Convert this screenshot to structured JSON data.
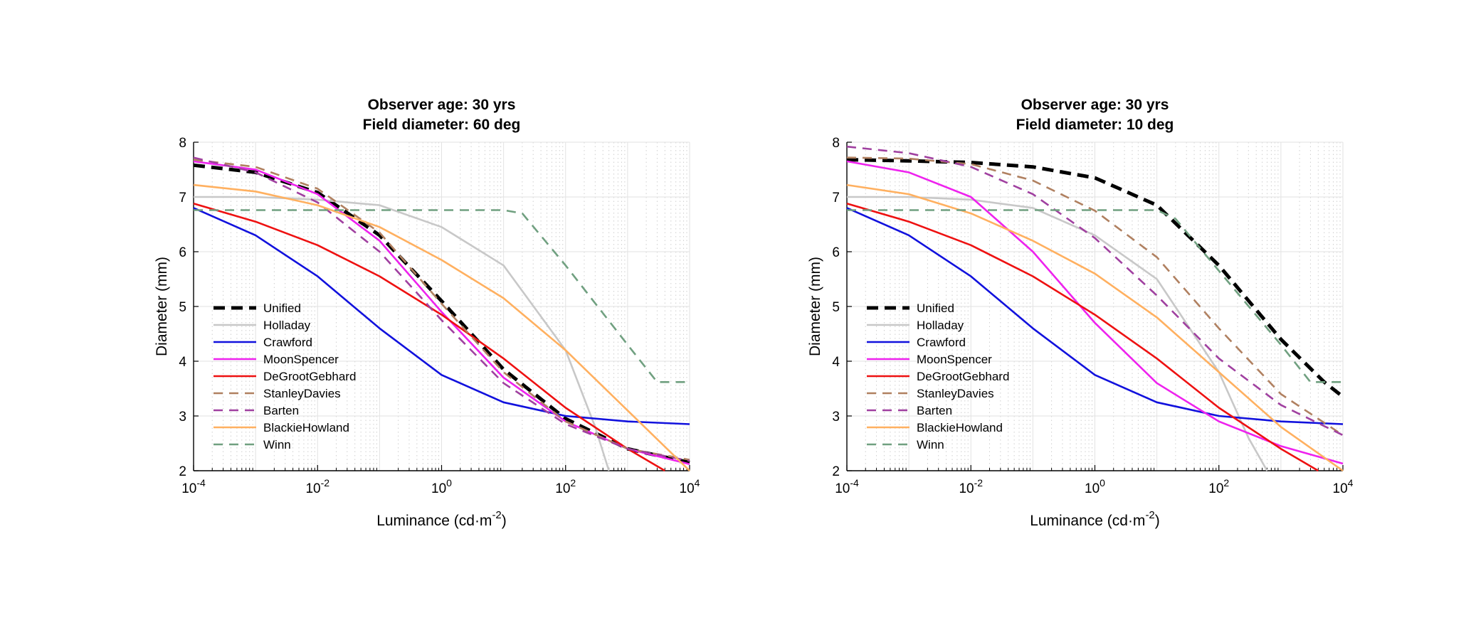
{
  "chart_data": [
    {
      "type": "line",
      "title": [
        "Observer age: 30 yrs",
        "Field diameter: 60 deg"
      ],
      "xlabel": "Luminance (cd·m⁻²)",
      "ylabel": "Diameter (mm)",
      "xscale": "log",
      "xlim": [
        0.0001,
        10000
      ],
      "ylim": [
        2,
        8
      ],
      "xticks": [
        "10-4",
        "10-2",
        "100",
        "102",
        "104"
      ],
      "yticks": [
        2,
        3,
        4,
        5,
        6,
        7,
        8
      ],
      "grid": true,
      "legend_position": "lower-left",
      "series": [
        {
          "name": "Unified",
          "style": "dashed-thick",
          "color": "#000000",
          "points": [
            [
              0.0001,
              7.58
            ],
            [
              0.001,
              7.45
            ],
            [
              0.01,
              7.08
            ],
            [
              0.1,
              6.3
            ],
            [
              1,
              5.1
            ],
            [
              10,
              3.85
            ],
            [
              100,
              2.95
            ],
            [
              1000,
              2.4
            ],
            [
              10000,
              2.15
            ]
          ]
        },
        {
          "name": "Holladay",
          "style": "solid",
          "color": "#c8c8c8",
          "points": [
            [
              0.0001,
              7.0
            ],
            [
              0.001,
              7.0
            ],
            [
              0.01,
              6.95
            ],
            [
              0.1,
              6.85
            ],
            [
              1,
              6.45
            ],
            [
              10,
              5.75
            ],
            [
              100,
              4.2
            ],
            [
              300,
              2.8
            ],
            [
              500,
              2.0
            ]
          ]
        },
        {
          "name": "Crawford",
          "style": "solid",
          "color": "#1111dd",
          "points": [
            [
              0.0001,
              6.8
            ],
            [
              0.001,
              6.3
            ],
            [
              0.01,
              5.55
            ],
            [
              0.1,
              4.6
            ],
            [
              1,
              3.75
            ],
            [
              10,
              3.25
            ],
            [
              100,
              3.0
            ],
            [
              1000,
              2.9
            ],
            [
              10000,
              2.85
            ]
          ]
        },
        {
          "name": "MoonSpencer",
          "style": "solid",
          "color": "#ee22ee",
          "points": [
            [
              0.0001,
              7.65
            ],
            [
              0.001,
              7.5
            ],
            [
              0.01,
              7.05
            ],
            [
              0.1,
              6.2
            ],
            [
              1,
              4.9
            ],
            [
              10,
              3.7
            ],
            [
              100,
              2.9
            ],
            [
              1000,
              2.4
            ],
            [
              10000,
              2.12
            ]
          ]
        },
        {
          "name": "DeGrootGebhard",
          "style": "solid",
          "color": "#ee1111",
          "points": [
            [
              0.0001,
              6.88
            ],
            [
              0.001,
              6.55
            ],
            [
              0.01,
              6.12
            ],
            [
              0.1,
              5.55
            ],
            [
              1,
              4.85
            ],
            [
              10,
              4.05
            ],
            [
              100,
              3.15
            ],
            [
              1000,
              2.4
            ],
            [
              4000,
              2.0
            ]
          ]
        },
        {
          "name": "StanleyDavies",
          "style": "dashed",
          "color": "#b08060",
          "points": [
            [
              0.0001,
              7.68
            ],
            [
              0.001,
              7.55
            ],
            [
              0.01,
              7.15
            ],
            [
              0.1,
              6.35
            ],
            [
              1,
              5.05
            ],
            [
              10,
              3.8
            ],
            [
              100,
              2.9
            ],
            [
              1000,
              2.4
            ],
            [
              10000,
              2.2
            ]
          ]
        },
        {
          "name": "Barten",
          "style": "dashed",
          "color": "#a040a0",
          "points": [
            [
              0.0001,
              7.72
            ],
            [
              0.001,
              7.45
            ],
            [
              0.01,
              6.9
            ],
            [
              0.1,
              6.0
            ],
            [
              1,
              4.75
            ],
            [
              10,
              3.6
            ],
            [
              100,
              2.85
            ],
            [
              1000,
              2.4
            ],
            [
              10000,
              2.18
            ]
          ]
        },
        {
          "name": "BlackieHowland",
          "style": "solid",
          "color": "#ffb060",
          "points": [
            [
              0.0001,
              7.22
            ],
            [
              0.001,
              7.1
            ],
            [
              0.01,
              6.85
            ],
            [
              0.1,
              6.45
            ],
            [
              1,
              5.85
            ],
            [
              10,
              5.15
            ],
            [
              100,
              4.2
            ],
            [
              1000,
              3.1
            ],
            [
              10000,
              2.0
            ]
          ]
        },
        {
          "name": "Winn",
          "style": "dashed",
          "color": "#70a080",
          "points": [
            [
              0.0001,
              6.76
            ],
            [
              0.001,
              6.76
            ],
            [
              0.01,
              6.76
            ],
            [
              0.1,
              6.76
            ],
            [
              1,
              6.76
            ],
            [
              10,
              6.76
            ],
            [
              20,
              6.7
            ],
            [
              100,
              5.75
            ],
            [
              1000,
              4.3
            ],
            [
              3000,
              3.62
            ],
            [
              10000,
              3.62
            ]
          ]
        }
      ]
    },
    {
      "type": "line",
      "title": [
        "Observer age: 30 yrs",
        "Field diameter: 10 deg"
      ],
      "xlabel": "Luminance (cd·m⁻²)",
      "ylabel": "Diameter (mm)",
      "xscale": "log",
      "xlim": [
        0.0001,
        10000
      ],
      "ylim": [
        2,
        8
      ],
      "xticks": [
        "10-4",
        "10-2",
        "100",
        "102",
        "104"
      ],
      "yticks": [
        2,
        3,
        4,
        5,
        6,
        7,
        8
      ],
      "grid": true,
      "legend_position": "lower-left",
      "series": [
        {
          "name": "Unified",
          "style": "dashed-thick",
          "color": "#000000",
          "points": [
            [
              0.0001,
              7.68
            ],
            [
              0.001,
              7.66
            ],
            [
              0.01,
              7.63
            ],
            [
              0.1,
              7.55
            ],
            [
              1,
              7.35
            ],
            [
              10,
              6.85
            ],
            [
              100,
              5.75
            ],
            [
              1000,
              4.4
            ],
            [
              5000,
              3.62
            ],
            [
              10000,
              3.35
            ]
          ]
        },
        {
          "name": "Holladay",
          "style": "solid",
          "color": "#c8c8c8",
          "points": [
            [
              0.0001,
              7.0
            ],
            [
              0.001,
              7.0
            ],
            [
              0.01,
              6.95
            ],
            [
              0.1,
              6.8
            ],
            [
              1,
              6.3
            ],
            [
              10,
              5.5
            ],
            [
              100,
              3.8
            ],
            [
              300,
              2.6
            ],
            [
              600,
              2.0
            ]
          ]
        },
        {
          "name": "Crawford",
          "style": "solid",
          "color": "#1111dd",
          "points": [
            [
              0.0001,
              6.8
            ],
            [
              0.001,
              6.3
            ],
            [
              0.01,
              5.55
            ],
            [
              0.1,
              4.6
            ],
            [
              1,
              3.75
            ],
            [
              10,
              3.25
            ],
            [
              100,
              3.0
            ],
            [
              1000,
              2.9
            ],
            [
              10000,
              2.85
            ]
          ]
        },
        {
          "name": "MoonSpencer",
          "style": "solid",
          "color": "#ee22ee",
          "points": [
            [
              0.0001,
              7.65
            ],
            [
              0.001,
              7.45
            ],
            [
              0.01,
              7.0
            ],
            [
              0.1,
              6.0
            ],
            [
              1,
              4.7
            ],
            [
              10,
              3.6
            ],
            [
              100,
              2.9
            ],
            [
              1000,
              2.45
            ],
            [
              10000,
              2.13
            ]
          ]
        },
        {
          "name": "DeGrootGebhard",
          "style": "solid",
          "color": "#ee1111",
          "points": [
            [
              0.0001,
              6.88
            ],
            [
              0.001,
              6.55
            ],
            [
              0.01,
              6.12
            ],
            [
              0.1,
              5.55
            ],
            [
              1,
              4.85
            ],
            [
              10,
              4.05
            ],
            [
              100,
              3.15
            ],
            [
              1000,
              2.4
            ],
            [
              4000,
              2.0
            ]
          ]
        },
        {
          "name": "StanleyDavies",
          "style": "dashed",
          "color": "#b08060",
          "points": [
            [
              0.0001,
              7.72
            ],
            [
              0.001,
              7.7
            ],
            [
              0.01,
              7.6
            ],
            [
              0.1,
              7.3
            ],
            [
              1,
              6.75
            ],
            [
              10,
              5.9
            ],
            [
              100,
              4.6
            ],
            [
              1000,
              3.4
            ],
            [
              10000,
              2.65
            ]
          ]
        },
        {
          "name": "Barten",
          "style": "dashed",
          "color": "#a040a0",
          "points": [
            [
              0.0001,
              7.92
            ],
            [
              0.001,
              7.8
            ],
            [
              0.01,
              7.55
            ],
            [
              0.1,
              7.05
            ],
            [
              1,
              6.25
            ],
            [
              10,
              5.2
            ],
            [
              100,
              4.05
            ],
            [
              1000,
              3.2
            ],
            [
              10000,
              2.65
            ]
          ]
        },
        {
          "name": "BlackieHowland",
          "style": "solid",
          "color": "#ffb060",
          "points": [
            [
              0.0001,
              7.22
            ],
            [
              0.001,
              7.05
            ],
            [
              0.01,
              6.7
            ],
            [
              0.1,
              6.2
            ],
            [
              1,
              5.6
            ],
            [
              10,
              4.8
            ],
            [
              100,
              3.8
            ],
            [
              1000,
              2.8
            ],
            [
              10000,
              2.0
            ]
          ]
        },
        {
          "name": "Winn",
          "style": "dashed",
          "color": "#70a080",
          "points": [
            [
              0.0001,
              6.76
            ],
            [
              0.001,
              6.76
            ],
            [
              0.01,
              6.76
            ],
            [
              0.1,
              6.76
            ],
            [
              1,
              6.76
            ],
            [
              10,
              6.76
            ],
            [
              20,
              6.6
            ],
            [
              100,
              5.65
            ],
            [
              1000,
              4.3
            ],
            [
              3000,
              3.62
            ],
            [
              10000,
              3.62
            ]
          ]
        }
      ]
    }
  ]
}
